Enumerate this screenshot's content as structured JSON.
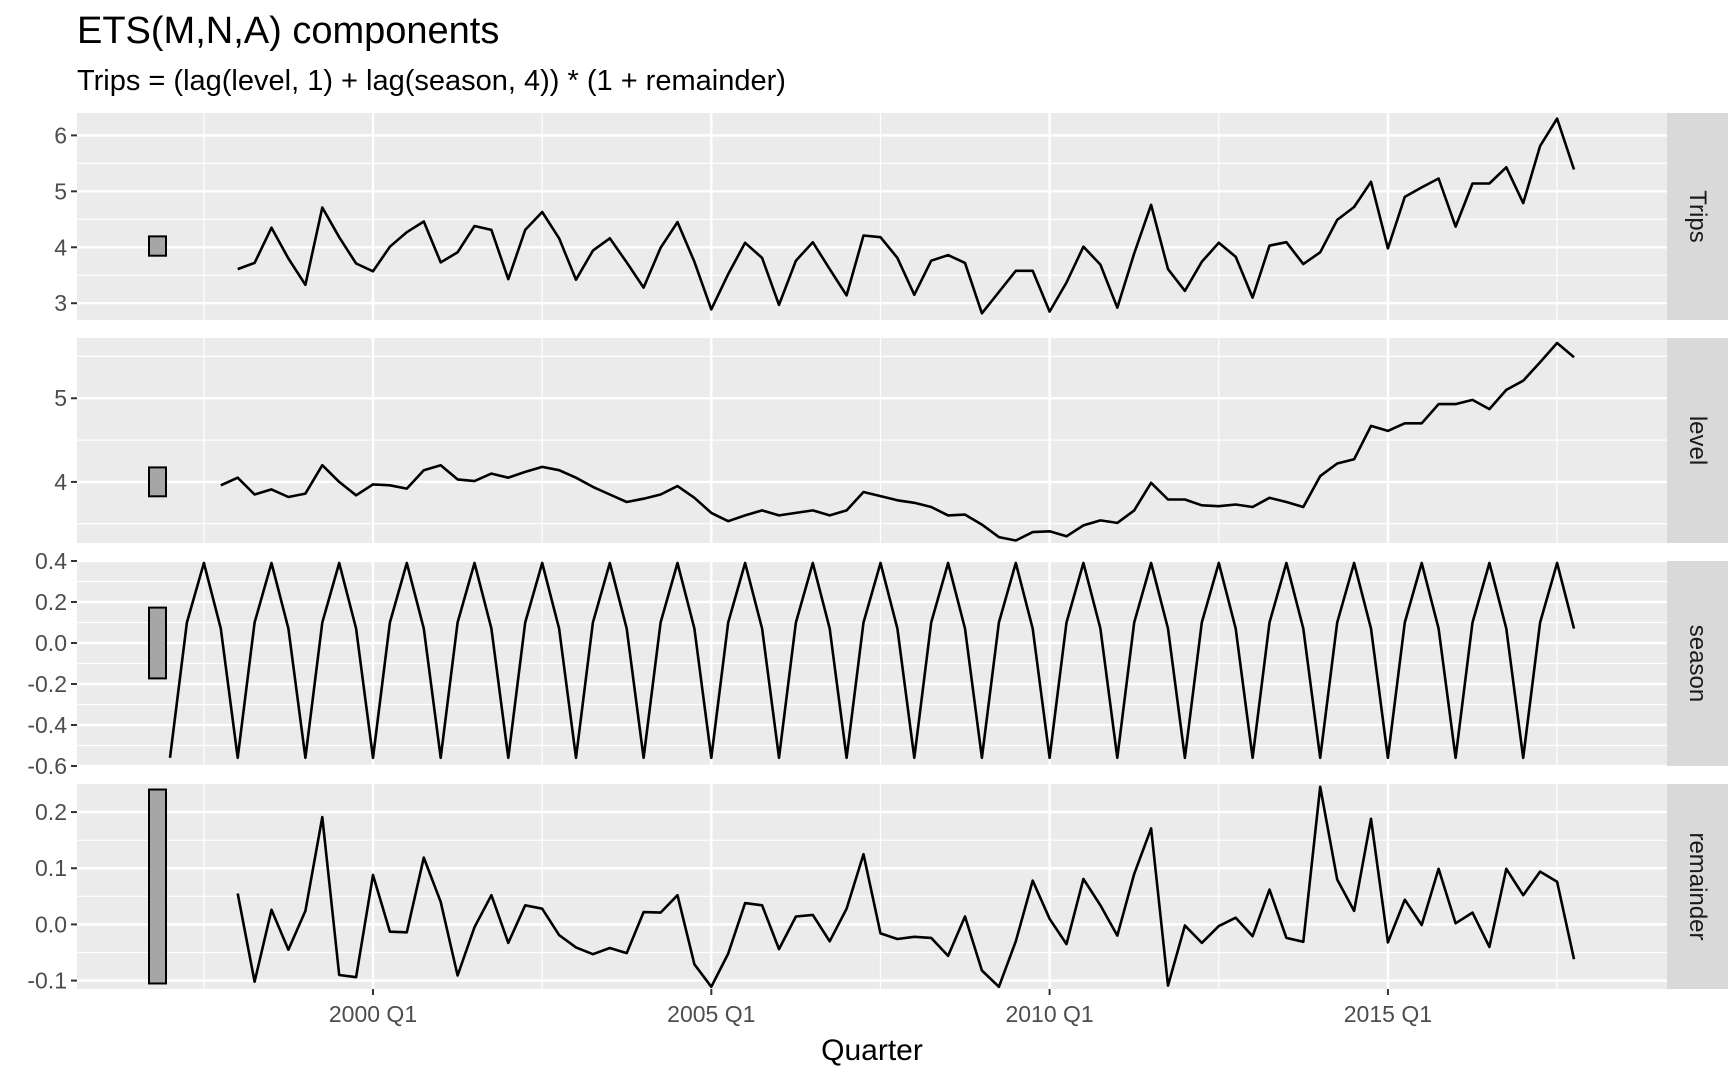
{
  "title": "ETS(M,N,A) components",
  "subtitle": "Trips = (lag(level, 1) + lag(season, 4)) * (1 + remainder)",
  "chart_data": {
    "type": "line",
    "xlabel": "Quarter",
    "x_start": "1998 Q1",
    "x_ticks": [
      "2000 Q1",
      "2005 Q1",
      "2010 Q1",
      "2015 Q1"
    ],
    "series": [
      {
        "name": "Trips",
        "ylim": [
          2.7,
          6.4
        ],
        "y_ticks": [
          "3",
          "4",
          "5",
          "6"
        ],
        "values": [
          3.61,
          3.72,
          4.35,
          3.8,
          3.33,
          4.71,
          4.18,
          3.71,
          3.57,
          4.01,
          4.27,
          4.46,
          3.73,
          3.91,
          4.38,
          4.31,
          3.43,
          4.31,
          4.63,
          4.16,
          3.42,
          3.94,
          4.16,
          3.73,
          3.28,
          3.99,
          4.45,
          3.74,
          2.89,
          3.52,
          4.08,
          3.81,
          2.97,
          3.76,
          4.09,
          3.61,
          3.14,
          4.21,
          4.18,
          3.81,
          3.15,
          3.76,
          3.86,
          3.72,
          2.82,
          3.2,
          3.58,
          3.58,
          2.85,
          3.37,
          4.01,
          3.69,
          2.92,
          3.89,
          4.76,
          3.61,
          3.22,
          3.74,
          4.08,
          3.83,
          3.1,
          4.03,
          4.09,
          3.7,
          3.91,
          4.49,
          4.72,
          5.17,
          3.98,
          4.9,
          5.07,
          5.23,
          4.37,
          5.14,
          5.14,
          5.43,
          4.79,
          5.81,
          6.3,
          5.39
        ]
      },
      {
        "name": "level",
        "ylim": [
          3.27,
          5.72
        ],
        "y_ticks": [
          "4",
          "5"
        ],
        "values": [
          3.96,
          4.05,
          3.85,
          3.91,
          3.82,
          3.86,
          4.2,
          4.0,
          3.84,
          3.97,
          3.96,
          3.92,
          4.14,
          4.2,
          4.03,
          4.01,
          4.1,
          4.05,
          4.12,
          4.18,
          4.14,
          4.05,
          3.94,
          3.85,
          3.76,
          3.8,
          3.85,
          3.95,
          3.81,
          3.63,
          3.53,
          3.6,
          3.66,
          3.6,
          3.63,
          3.66,
          3.6,
          3.66,
          3.88,
          3.83,
          3.78,
          3.75,
          3.7,
          3.6,
          3.61,
          3.49,
          3.34,
          3.3,
          3.4,
          3.41,
          3.35,
          3.48,
          3.54,
          3.51,
          3.66,
          3.99,
          3.79,
          3.79,
          3.72,
          3.71,
          3.73,
          3.7,
          3.81,
          3.76,
          3.7,
          4.07,
          4.22,
          4.27,
          4.67,
          4.61,
          4.7,
          4.7,
          4.93,
          4.93,
          4.98,
          4.87,
          5.1,
          5.21,
          5.43,
          5.66,
          5.49
        ]
      },
      {
        "name": "season",
        "ylim": [
          -0.6,
          0.4
        ],
        "y_ticks": [
          "0.4",
          "0.2",
          "0.0",
          "-0.2",
          "-0.4",
          "-0.6"
        ],
        "values": [
          -0.56,
          0.1,
          0.39,
          0.07,
          -0.56,
          0.1,
          0.39,
          0.07,
          -0.56,
          0.1,
          0.39,
          0.07,
          -0.56,
          0.1,
          0.39,
          0.07,
          -0.56,
          0.1,
          0.39,
          0.07,
          -0.56,
          0.1,
          0.39,
          0.07,
          -0.56,
          0.1,
          0.39,
          0.07,
          -0.56,
          0.1,
          0.39,
          0.07,
          -0.56,
          0.1,
          0.39,
          0.07,
          -0.56,
          0.1,
          0.39,
          0.07,
          -0.56,
          0.1,
          0.39,
          0.07,
          -0.56,
          0.1,
          0.39,
          0.07,
          -0.56,
          0.1,
          0.39,
          0.07,
          -0.56,
          0.1,
          0.39,
          0.07,
          -0.56,
          0.1,
          0.39,
          0.07,
          -0.56,
          0.1,
          0.39,
          0.07,
          -0.56,
          0.1,
          0.39,
          0.07,
          -0.56,
          0.1,
          0.39,
          0.07,
          -0.56,
          0.1,
          0.39,
          0.07,
          -0.56,
          0.1,
          0.39,
          0.07,
          -0.56,
          0.1,
          0.39,
          0.07
        ]
      },
      {
        "name": "remainder",
        "ylim": [
          -0.115,
          0.25
        ],
        "y_ticks": [
          "0.2",
          "0.1",
          "0.0",
          "-0.1"
        ],
        "values": [
          0.055,
          -0.102,
          0.026,
          -0.045,
          0.024,
          0.191,
          -0.09,
          -0.094,
          0.088,
          -0.013,
          -0.014,
          0.119,
          0.04,
          -0.091,
          -0.005,
          0.052,
          -0.033,
          0.034,
          0.028,
          -0.019,
          -0.041,
          -0.053,
          -0.042,
          -0.051,
          0.022,
          0.021,
          0.052,
          -0.071,
          -0.111,
          -0.052,
          0.038,
          0.034,
          -0.044,
          0.014,
          0.017,
          -0.03,
          0.028,
          0.125,
          -0.016,
          -0.026,
          -0.022,
          -0.024,
          -0.056,
          0.014,
          -0.082,
          -0.111,
          -0.03,
          0.078,
          0.01,
          -0.035,
          0.081,
          0.034,
          -0.02,
          0.09,
          0.171,
          -0.109,
          -0.002,
          -0.033,
          -0.003,
          0.012,
          -0.021,
          0.062,
          -0.024,
          -0.031,
          0.245,
          0.08,
          0.024,
          0.188,
          -0.032,
          0.044,
          -0.001,
          0.099,
          0.002,
          0.021,
          -0.04,
          0.099,
          0.052,
          0.094,
          0.076,
          -0.062
        ]
      }
    ],
    "grid": true,
    "strip_position": "right"
  }
}
